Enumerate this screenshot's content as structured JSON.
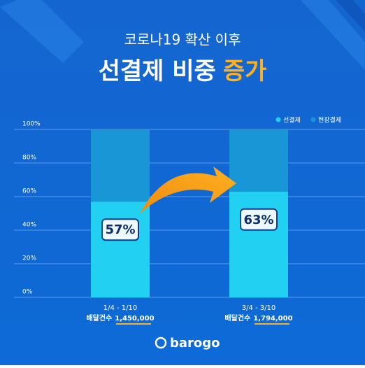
{
  "chart_data": {
    "type": "stacked_bar",
    "subtitle": "코로나19 확산 이후",
    "title": "선결제 비중",
    "title_highlight": "증가",
    "categories": [
      "1/4 - 1/10",
      "3/4 - 3/10"
    ],
    "series": [
      {
        "name": "선결제",
        "color": "#22d0f2",
        "values": [
          57,
          63
        ],
        "value_labels": [
          "57%",
          "63%"
        ]
      },
      {
        "name": "현장결제",
        "color": "#1996d6",
        "values": [
          43,
          37
        ]
      }
    ],
    "ylim": [
      0,
      100
    ],
    "yticks": [
      {
        "value": 0,
        "label": "0%"
      },
      {
        "value": 20,
        "label": "20%"
      },
      {
        "value": 40,
        "label": "40%"
      },
      {
        "value": 60,
        "label": "60%"
      },
      {
        "value": 80,
        "label": "80%"
      },
      {
        "value": 100,
        "label": "100%"
      }
    ],
    "grid": true,
    "legend": "top-right",
    "delivery_label": "배달건수",
    "delivery_counts": [
      "1,450,000",
      "1,794,000"
    ],
    "brand": "barogo"
  }
}
